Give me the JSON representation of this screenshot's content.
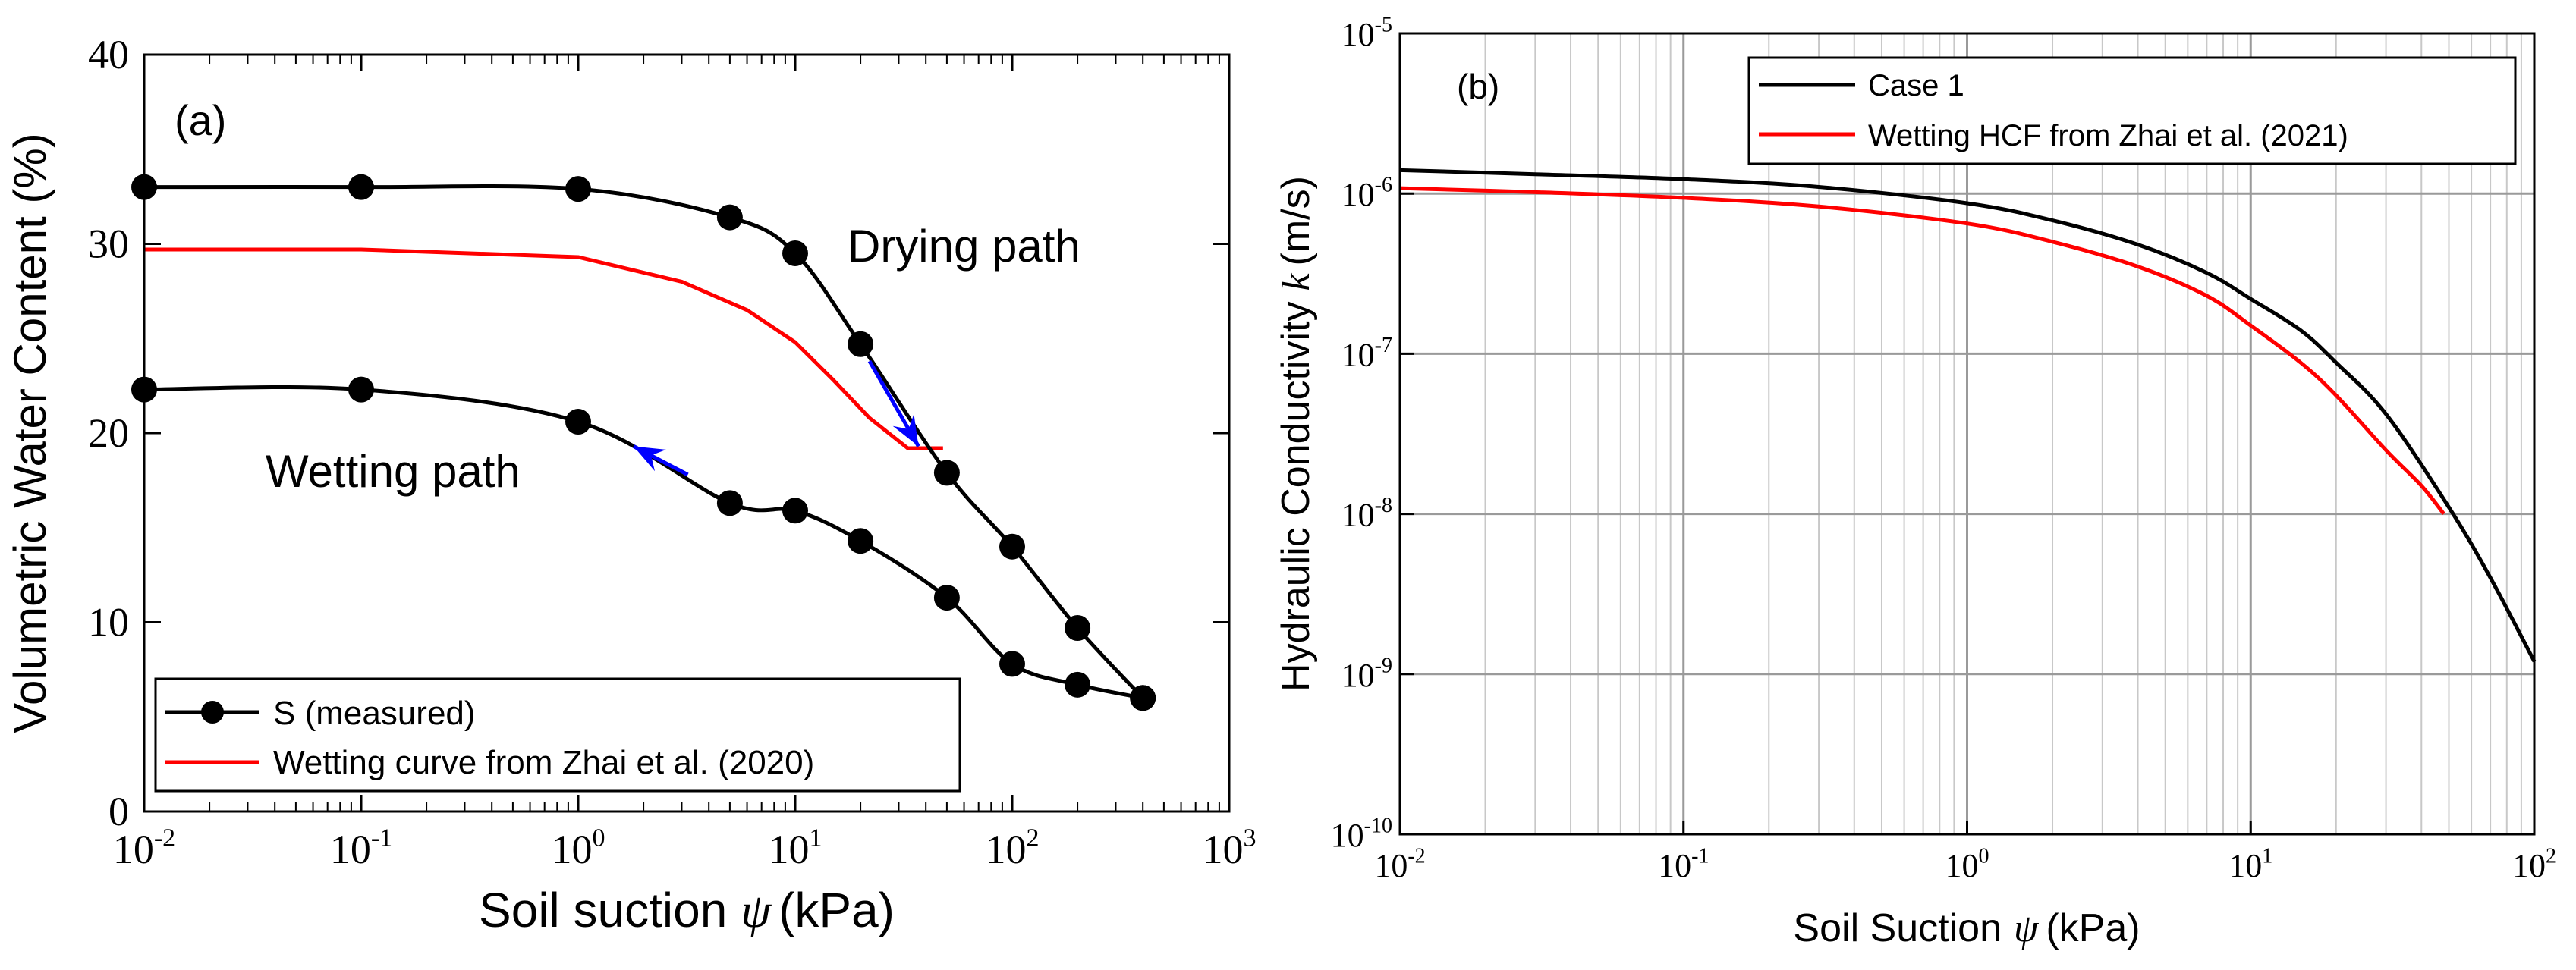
{
  "chart_data": [
    {
      "type": "line",
      "panel_label": "(a)",
      "xlabel_text": "Soil suction",
      "xlabel_symbol": "ψ",
      "xlabel_unit": "(kPa)",
      "ylabel": "Volumetric Water Content (%)",
      "x_scale": "log",
      "xlim": [
        0.01,
        1000
      ],
      "ylim": [
        0,
        40
      ],
      "x_ticks": [
        {
          "base": "10",
          "exp": "-2"
        },
        {
          "base": "10",
          "exp": "-1"
        },
        {
          "base": "10",
          "exp": "0"
        },
        {
          "base": "10",
          "exp": "1"
        },
        {
          "base": "10",
          "exp": "2"
        },
        {
          "base": "10",
          "exp": "3"
        }
      ],
      "y_ticks": [
        "0",
        "10",
        "20",
        "30",
        "40"
      ],
      "y_tick_values": [
        0,
        10,
        20,
        30,
        40
      ],
      "grid": false,
      "legend_position": "bottom-left",
      "annotations": {
        "drying": "Drying path",
        "wetting": "Wetting path"
      },
      "series": [
        {
          "name": "S (measured)",
          "color": "#000000",
          "marker": "circle",
          "path": "drying",
          "x": [
            0.01,
            0.1,
            1,
            5,
            10,
            20,
            50,
            100,
            200,
            400
          ],
          "y": [
            33.0,
            33.0,
            32.9,
            31.4,
            29.5,
            24.7,
            17.9,
            14.0,
            9.7,
            6.0
          ]
        },
        {
          "name": "S (measured) wetting",
          "color": "#000000",
          "marker": "circle",
          "path": "wetting",
          "x": [
            400,
            200,
            100,
            50,
            20,
            10,
            5,
            1,
            0.1,
            0.01
          ],
          "y": [
            6.0,
            6.7,
            7.8,
            11.3,
            14.3,
            15.9,
            16.3,
            20.6,
            22.3,
            22.3
          ]
        },
        {
          "name": "Wetting curve from Zhai et al. (2020)",
          "color": "#ff0000",
          "marker": "none",
          "x": [
            0.01,
            0.1,
            1,
            3,
            6,
            10,
            15,
            22,
            33,
            48
          ],
          "y": [
            29.7,
            29.7,
            29.3,
            28.0,
            26.5,
            24.8,
            22.8,
            20.8,
            19.2,
            19.2
          ]
        }
      ],
      "arrows": [
        {
          "path": "drying",
          "color": "#0000ff",
          "from": [
            22,
            23.8
          ],
          "to": [
            37,
            19.3
          ]
        },
        {
          "path": "wetting",
          "color": "#0000ff",
          "from": [
            3.2,
            17.8
          ],
          "to": [
            1.8,
            19.3
          ]
        }
      ]
    },
    {
      "type": "line",
      "panel_label": "(b)",
      "xlabel_text": "Soil Suction",
      "xlabel_symbol": "ψ",
      "xlabel_unit": "(kPa)",
      "ylabel_text": "Hydraulic Conductivity",
      "ylabel_symbol": "k",
      "ylabel_unit": "(m/s)",
      "x_scale": "log",
      "y_scale": "log",
      "xlim": [
        0.01,
        100
      ],
      "ylim": [
        1e-10,
        1e-05
      ],
      "x_ticks": [
        {
          "base": "10",
          "exp": "-2"
        },
        {
          "base": "10",
          "exp": "-1"
        },
        {
          "base": "10",
          "exp": "0"
        },
        {
          "base": "10",
          "exp": "1"
        },
        {
          "base": "10",
          "exp": "2"
        }
      ],
      "y_ticks": [
        {
          "base": "10",
          "exp": "-10"
        },
        {
          "base": "10",
          "exp": "-9"
        },
        {
          "base": "10",
          "exp": "-8"
        },
        {
          "base": "10",
          "exp": "-7"
        },
        {
          "base": "10",
          "exp": "-6"
        },
        {
          "base": "10",
          "exp": "-5"
        }
      ],
      "grid": true,
      "legend_position": "top-right",
      "series": [
        {
          "name": "Case 1",
          "color": "#000000",
          "x": [
            0.01,
            0.03,
            0.1,
            0.3,
            1,
            2,
            4,
            7,
            10,
            15,
            20,
            30,
            50,
            70,
            100
          ],
          "y": [
            1.4e-06,
            1.32e-06,
            1.23e-06,
            1.1e-06,
            8.7e-07,
            6.8e-07,
            4.8e-07,
            3.2e-07,
            2.2e-07,
            1.4e-07,
            8.8e-08,
            4.2e-08,
            1.1e-08,
            4e-09,
            1.2e-09
          ]
        },
        {
          "name": "Wetting HCF from Zhai et al. (2021)",
          "color": "#ff0000",
          "x": [
            0.01,
            0.03,
            0.1,
            0.3,
            1,
            2,
            4,
            7,
            10,
            15,
            20,
            30,
            40,
            48
          ],
          "y": [
            1.08e-06,
            1.02e-06,
            9.4e-07,
            8.3e-07,
            6.5e-07,
            5e-07,
            3.5e-07,
            2.3e-07,
            1.5e-07,
            8.8e-08,
            5.5e-08,
            2.5e-08,
            1.5e-08,
            1e-08
          ]
        }
      ]
    }
  ]
}
